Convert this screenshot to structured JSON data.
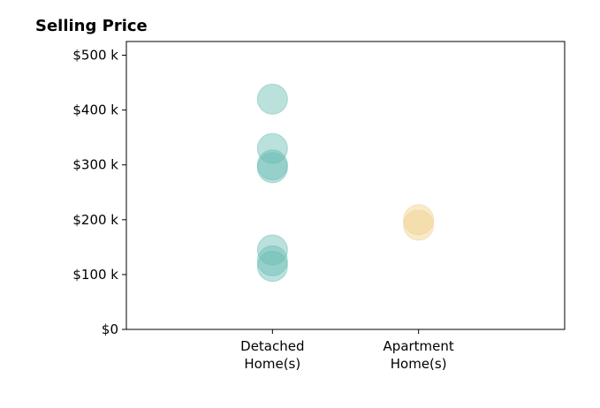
{
  "chart_data": {
    "type": "scatter",
    "title": "Selling Price",
    "xlabel": "",
    "ylabel": "",
    "categories": [
      "Detached\nHome(s)",
      "Apartment\nHome(s)"
    ],
    "xlim": [
      0,
      3
    ],
    "ylim": [
      0,
      525000
    ],
    "yticks": [
      {
        "value": 0,
        "label": "$0"
      },
      {
        "value": 100000,
        "label": "$100 k"
      },
      {
        "value": 200000,
        "label": "$200 k"
      },
      {
        "value": 300000,
        "label": "$300 k"
      },
      {
        "value": 400000,
        "label": "$400 k"
      },
      {
        "value": 500000,
        "label": "$500 k"
      }
    ],
    "series": [
      {
        "category": "Detached\nHome(s)",
        "color": "#69bdb3",
        "values": [
          420000,
          330000,
          300000,
          295000,
          145000,
          125000,
          115000
        ]
      },
      {
        "category": "Apartment\nHome(s)",
        "color": "#f0d08c",
        "values": [
          200000,
          190000
        ]
      }
    ],
    "grid": false,
    "legend": "none"
  }
}
